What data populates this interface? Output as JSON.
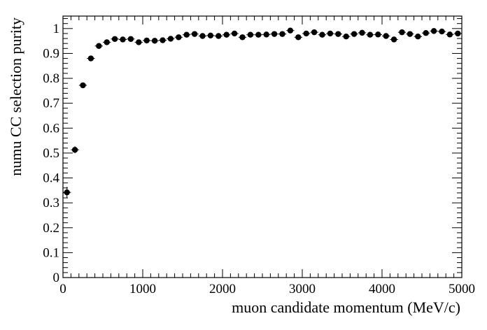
{
  "chart_data": {
    "type": "scatter",
    "title": "",
    "xlabel": "muon candidate momentum (MeV/c)",
    "ylabel": "numu CC selection purity",
    "xlim": [
      0,
      5000
    ],
    "ylim": [
      0,
      1.05
    ],
    "x_ticks": [
      0,
      1000,
      2000,
      3000,
      4000,
      5000
    ],
    "y_ticks": [
      0,
      0.1,
      0.2,
      0.3,
      0.4,
      0.5,
      0.6,
      0.7,
      0.8,
      0.9,
      1
    ],
    "x_tick_labels": [
      "0",
      "1000",
      "2000",
      "3000",
      "4000",
      "5000"
    ],
    "y_tick_labels": [
      "0",
      "0.1",
      "0.2",
      "0.3",
      "0.4",
      "0.5",
      "0.6",
      "0.7",
      "0.8",
      "0.9",
      "1"
    ],
    "grid": false,
    "legend": "none",
    "marker_color": "#000000",
    "bin_width": 100,
    "series": [
      {
        "x": [
          50,
          150,
          250,
          350,
          450,
          550,
          650,
          750,
          850,
          950,
          1050,
          1150,
          1250,
          1350,
          1450,
          1550,
          1650,
          1750,
          1850,
          1950,
          2050,
          2150,
          2250,
          2350,
          2450,
          2550,
          2650,
          2750,
          2850,
          2950,
          3050,
          3150,
          3250,
          3350,
          3450,
          3550,
          3650,
          3750,
          3850,
          3950,
          4050,
          4150,
          4250,
          4350,
          4450,
          4550,
          4650,
          4750,
          4850,
          4950
        ],
        "y": [
          0.342,
          0.513,
          0.772,
          0.88,
          0.93,
          0.945,
          0.958,
          0.956,
          0.958,
          0.945,
          0.952,
          0.951,
          0.953,
          0.959,
          0.965,
          0.975,
          0.978,
          0.97,
          0.972,
          0.97,
          0.975,
          0.98,
          0.965,
          0.975,
          0.975,
          0.976,
          0.978,
          0.978,
          0.992,
          0.965,
          0.98,
          0.985,
          0.975,
          0.98,
          0.978,
          0.968,
          0.978,
          0.983,
          0.975,
          0.976,
          0.97,
          0.956,
          0.985,
          0.978,
          0.968,
          0.982,
          0.99,
          0.988,
          0.976,
          0.98
        ],
        "yerr": [
          0.022,
          0.014,
          0.008,
          0.007,
          0.006,
          0.006,
          0.005,
          0.005,
          0.005,
          0.005,
          0.005,
          0.005,
          0.005,
          0.005,
          0.005,
          0.005,
          0.005,
          0.005,
          0.005,
          0.005,
          0.005,
          0.005,
          0.006,
          0.006,
          0.006,
          0.006,
          0.006,
          0.006,
          0.006,
          0.006,
          0.006,
          0.006,
          0.006,
          0.006,
          0.007,
          0.007,
          0.007,
          0.007,
          0.007,
          0.007,
          0.008,
          0.01,
          0.008,
          0.008,
          0.008,
          0.008,
          0.008,
          0.008,
          0.008,
          0.008
        ]
      }
    ]
  }
}
